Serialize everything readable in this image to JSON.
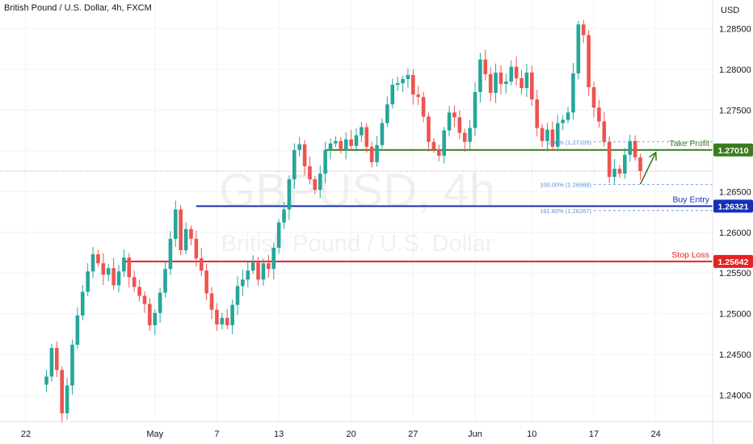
{
  "header": {
    "title": "British Pound / U.S. Dollar, 4h, FXCM",
    "currency": "USD"
  },
  "watermark": {
    "symbol": "GBPUSD, 4h",
    "name": "British Pound / U.S. Dollar"
  },
  "colors": {
    "up": "#26a69a",
    "down": "#ef5350",
    "take_profit": "#3a7d1e",
    "buy_entry": "#1530b8",
    "stop_loss": "#e52222",
    "fib": "#5b8fd6",
    "current": "#ef5350"
  },
  "chart_data": {
    "type": "candlestick",
    "title": "British Pound / U.S. Dollar, 4h, FXCM",
    "ylim": [
      1.2368,
      1.2885
    ],
    "y_ticks": [
      "1.28500",
      "1.28000",
      "1.27500",
      "1.27000",
      "1.26500",
      "1.26000",
      "1.25500",
      "1.25000",
      "1.24500",
      "1.24000"
    ],
    "y_tick_values": [
      1.285,
      1.28,
      1.275,
      1.27,
      1.265,
      1.26,
      1.255,
      1.25,
      1.245,
      1.24
    ],
    "x_ticks": [
      "22",
      "May",
      "7",
      "13",
      "20",
      "27",
      "Jun",
      "10",
      "17",
      "24"
    ],
    "x_tick_index": [
      -4,
      21,
      33,
      45,
      59,
      71,
      83,
      94,
      106,
      118
    ],
    "x_range": [
      -9,
      129
    ],
    "current_price": 1.2675,
    "levels": [
      {
        "label": "Take Profit",
        "value": 1.2701,
        "display": "1.27010",
        "start_index": 54
      },
      {
        "label": "Buy Entry",
        "value": 1.26321,
        "display": "1.26321",
        "start_index": 29
      },
      {
        "label": "Stop Loss",
        "value": 1.25642,
        "display": "1.25642",
        "start_index": 15
      }
    ],
    "fib_levels": [
      {
        "label": "0.00% (1.27109)",
        "value": 1.27109
      },
      {
        "label": "100.00% (1.26588)",
        "value": 1.26588
      },
      {
        "label": "161.80% (1.26267)",
        "value": 1.26267
      }
    ],
    "fib_start_index": 106,
    "arrow": {
      "from_index": 115,
      "from_value": 1.2659,
      "to_index": 118,
      "to_value": 1.2698
    },
    "closes": [
      1.2423,
      1.2458,
      1.2431,
      1.2378,
      1.2412,
      1.2462,
      1.2498,
      1.2527,
      1.2552,
      1.2573,
      1.2562,
      1.2548,
      1.2556,
      1.2535,
      1.2552,
      1.2569,
      1.2545,
      1.2533,
      1.2522,
      1.2512,
      1.2486,
      1.2501,
      1.2526,
      1.2555,
      1.2592,
      1.2628,
      1.2578,
      1.2604,
      1.2592,
      1.2568,
      1.2553,
      1.2525,
      1.2505,
      1.2487,
      1.2495,
      1.2486,
      1.2511,
      1.2534,
      1.2542,
      1.2553,
      1.2563,
      1.2542,
      1.2562,
      1.2555,
      1.2581,
      1.2612,
      1.2628,
      1.2665,
      1.2701,
      1.2708,
      1.2681,
      1.2665,
      1.2652,
      1.2672,
      1.2701,
      1.2709,
      1.2712,
      1.2701,
      1.2714,
      1.2706,
      1.2719,
      1.2729,
      1.2705,
      1.2686,
      1.2707,
      1.2734,
      1.2757,
      1.2781,
      1.2783,
      1.2788,
      1.2793,
      1.2769,
      1.2766,
      1.2742,
      1.2711,
      1.2702,
      1.2694,
      1.2725,
      1.2747,
      1.2741,
      1.2722,
      1.2711,
      1.2728,
      1.2772,
      1.2812,
      1.2794,
      1.2771,
      1.2796,
      1.2782,
      1.2785,
      1.2803,
      1.2789,
      1.2777,
      1.2796,
      1.2763,
      1.2728,
      1.2712,
      1.2726,
      1.2705,
      1.2734,
      1.2738,
      1.2747,
      1.2795,
      1.2855,
      1.2842,
      1.2778,
      1.2753,
      1.2736,
      1.2711,
      1.2668,
      1.2678,
      1.2672,
      1.2695,
      1.2712,
      1.2692,
      1.2675
    ]
  }
}
